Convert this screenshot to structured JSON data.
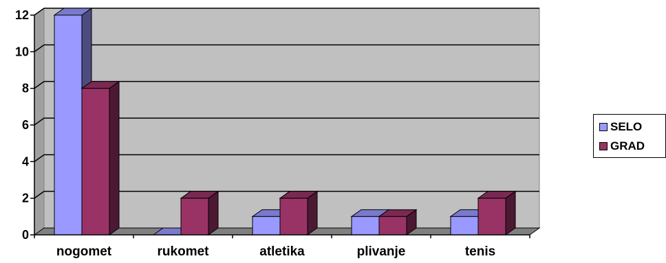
{
  "chart_data": {
    "type": "bar",
    "categories": [
      "nogomet",
      "rukomet",
      "atletika",
      "plivanje",
      "tenis"
    ],
    "series": [
      {
        "name": "SELO",
        "values": [
          12,
          0,
          1,
          1,
          1
        ]
      },
      {
        "name": "GRAD",
        "values": [
          8,
          2,
          2,
          1,
          2
        ]
      }
    ],
    "title": "",
    "xlabel": "",
    "ylabel": "",
    "ylim": [
      0,
      12
    ],
    "yticks": [
      0,
      2,
      4,
      6,
      8,
      10,
      12
    ],
    "grid": true,
    "legend": "right",
    "colors": {
      "series_front": [
        "#9999ff",
        "#993366"
      ],
      "series_side": [
        "#4c4c7f",
        "#4c1933"
      ],
      "series_top": [
        "#7a7acc",
        "#7a2951"
      ],
      "wall": "#c0c0c0",
      "floor": "#808080"
    }
  }
}
